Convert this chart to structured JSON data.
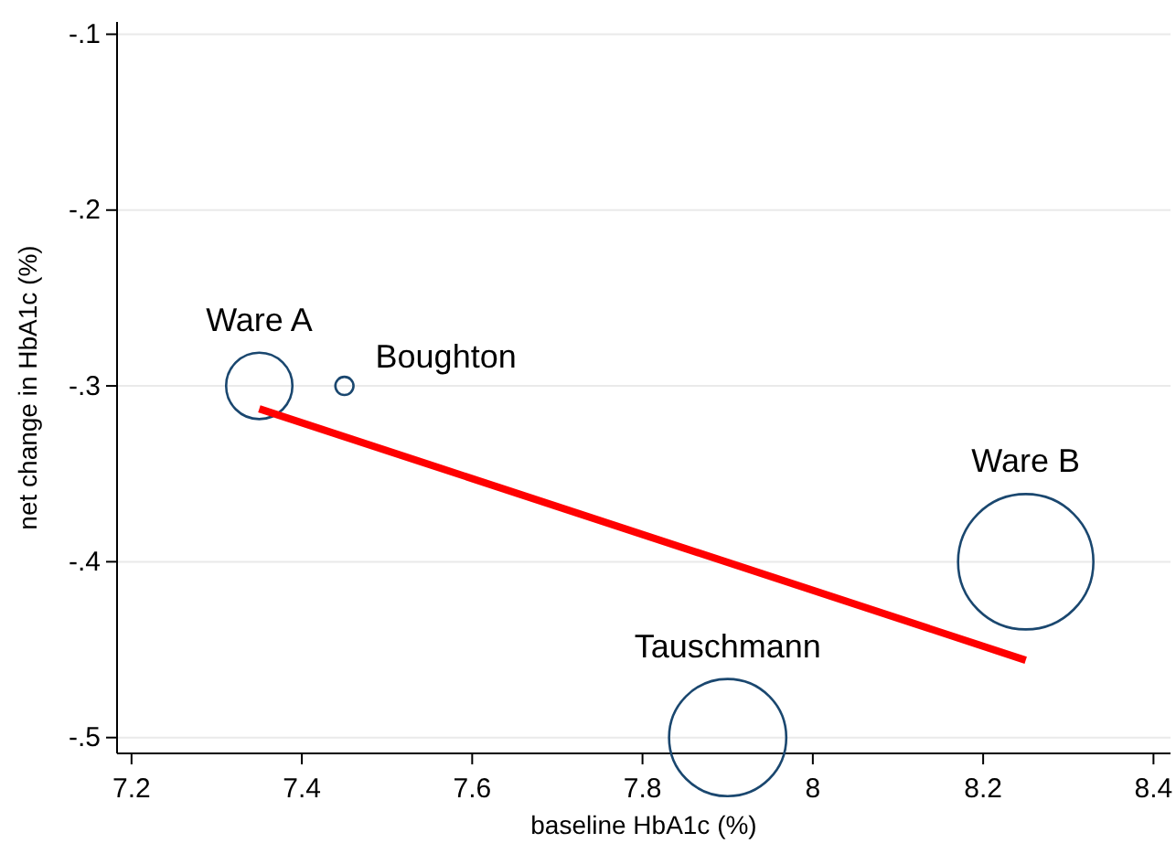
{
  "chart_data": {
    "type": "bubble",
    "xlabel": "baseline HbA1c (%)",
    "ylabel": "net change in HbA1c (%)",
    "xlim": [
      7.183,
      8.42
    ],
    "xticks": [
      7.2,
      7.4,
      7.6,
      7.8,
      8,
      8.2,
      8.4
    ],
    "ylim": [
      -0.509,
      -0.093
    ],
    "yticks": [
      {
        "value": -0.5,
        "label": "-.5"
      },
      {
        "value": -0.4,
        "label": "-.4"
      },
      {
        "value": -0.3,
        "label": "-.3"
      },
      {
        "value": -0.2,
        "label": "-.2"
      },
      {
        "value": -0.1,
        "label": "-.1"
      }
    ],
    "grid": "y",
    "series": [
      {
        "color": "#1a476f",
        "x": [
          7.35,
          7.45,
          7.9,
          8.25
        ],
        "values": [
          -0.3,
          -0.3,
          -0.5,
          -0.4
        ],
        "sizes": [
          0.24,
          0.018,
          0.75,
          1
        ]
      },
      {
        "type": "line",
        "color": "#ff0000",
        "x": [
          7.35,
          8.25
        ],
        "values": [
          -0.313,
          -0.456
        ]
      }
    ],
    "annotations": [
      {
        "text": "Ware A",
        "x": 7.35,
        "y": -0.3
      },
      {
        "text": "Boughton",
        "x": 7.45,
        "y": -0.3
      },
      {
        "text": "Tauschmann",
        "x": 7.9,
        "y": -0.5
      },
      {
        "text": "Ware B",
        "x": 8.25,
        "y": -0.4
      }
    ]
  }
}
